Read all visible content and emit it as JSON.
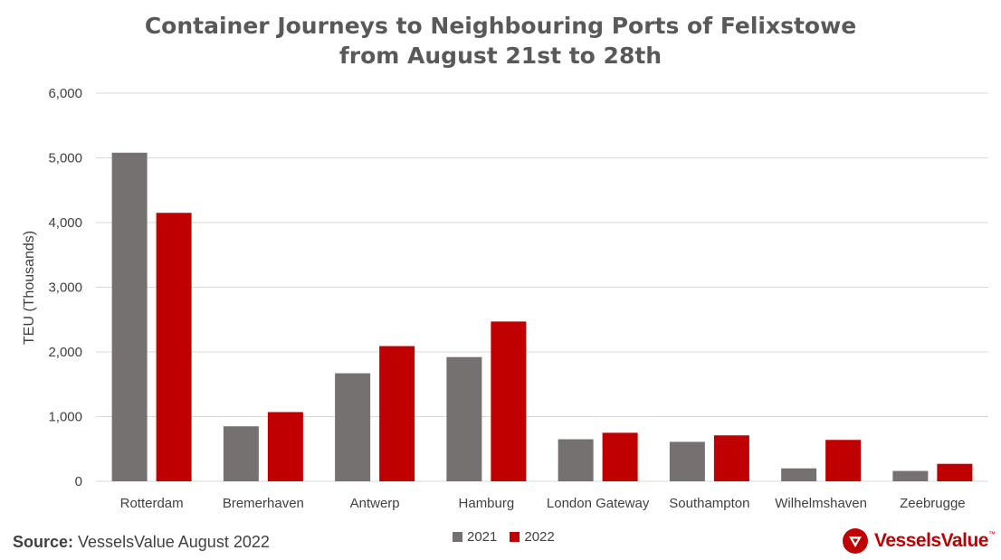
{
  "title_line1": "Container Journeys to Neighbouring Ports of Felixstowe",
  "title_line2": "from August 21st to 28th",
  "source_label": "Source:",
  "source_text": " VesselsValue August 2022",
  "logo_text": "VesselsValue",
  "logo_tm": "™",
  "colors": {
    "s2021": "#767171",
    "s2022": "#c00000",
    "grid": "#d9d9d9"
  },
  "chart_data": {
    "type": "bar",
    "title": "Container Journeys to Neighbouring Ports of Felixstowe from August 21st to 28th",
    "xlabel": "",
    "ylabel": "TEU (Thousands)",
    "ylim": [
      0,
      6000
    ],
    "yticks": [
      0,
      1000,
      2000,
      3000,
      4000,
      5000,
      6000
    ],
    "ytick_labels": [
      "0",
      "1,000",
      "2,000",
      "3,000",
      "4,000",
      "5,000",
      "6,000"
    ],
    "categories": [
      "Rotterdam",
      "Bremerhaven",
      "Antwerp",
      "Hamburg",
      "London Gateway",
      "Southampton",
      "Wilhelmshaven",
      "Zeebrugge"
    ],
    "series": [
      {
        "name": "2021",
        "values": [
          5080,
          850,
          1670,
          1920,
          650,
          610,
          200,
          160
        ]
      },
      {
        "name": "2022",
        "values": [
          4150,
          1070,
          2090,
          2470,
          750,
          710,
          640,
          270
        ]
      }
    ],
    "legend": "bottom-center",
    "grid": true
  }
}
